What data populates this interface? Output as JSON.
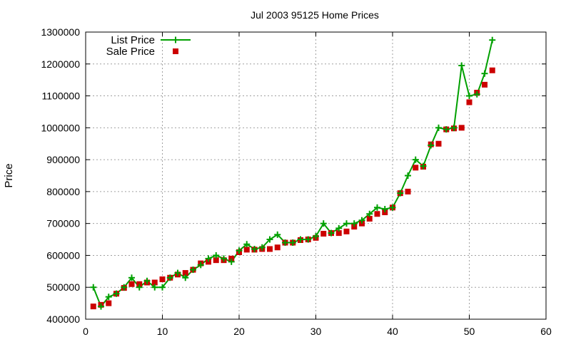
{
  "chart_data": {
    "type": "line",
    "title": "Jul 2003 95125 Home Prices",
    "xlabel": "",
    "ylabel": "Price",
    "xlim": [
      0,
      60
    ],
    "ylim": [
      400000,
      1300000
    ],
    "x_ticks": [
      0,
      10,
      20,
      30,
      40,
      50,
      60
    ],
    "y_ticks": [
      400000,
      500000,
      600000,
      700000,
      800000,
      900000,
      1000000,
      1100000,
      1200000,
      1300000
    ],
    "grid": true,
    "legend_position": "top-left",
    "series": [
      {
        "name": "List Price",
        "style": "line-with-plus-markers",
        "color": "#00a000",
        "x": [
          1,
          2,
          3,
          4,
          5,
          6,
          7,
          8,
          9,
          10,
          11,
          12,
          13,
          14,
          15,
          16,
          17,
          18,
          19,
          20,
          21,
          22,
          23,
          24,
          25,
          26,
          27,
          28,
          29,
          30,
          31,
          32,
          33,
          34,
          35,
          36,
          37,
          38,
          39,
          40,
          41,
          42,
          43,
          44,
          45,
          46,
          47,
          48,
          49,
          50,
          51,
          52,
          53
        ],
        "values": [
          500000,
          440000,
          470000,
          480000,
          500000,
          530000,
          500000,
          520000,
          500000,
          500000,
          530000,
          545000,
          530000,
          555000,
          570000,
          590000,
          600000,
          590000,
          580000,
          615000,
          635000,
          620000,
          625000,
          650000,
          665000,
          640000,
          640000,
          650000,
          650000,
          660000,
          700000,
          670000,
          685000,
          700000,
          700000,
          710000,
          730000,
          750000,
          745000,
          750000,
          795000,
          850000,
          900000,
          880000,
          945000,
          1000000,
          995000,
          1000000,
          1195000,
          1100000,
          1105000,
          1170000,
          1275000
        ]
      },
      {
        "name": "Sale Price",
        "style": "square-markers",
        "color": "#cc0000",
        "x": [
          1,
          2,
          3,
          4,
          5,
          6,
          7,
          8,
          9,
          10,
          11,
          12,
          13,
          14,
          15,
          16,
          17,
          18,
          19,
          20,
          21,
          22,
          23,
          24,
          25,
          26,
          27,
          28,
          29,
          30,
          31,
          32,
          33,
          34,
          35,
          36,
          37,
          38,
          39,
          40,
          41,
          42,
          43,
          44,
          45,
          46,
          47,
          48,
          49,
          50,
          51,
          52,
          53
        ],
        "values": [
          440000,
          445000,
          450000,
          480000,
          498000,
          510000,
          510000,
          515000,
          515000,
          525000,
          530000,
          540000,
          545000,
          555000,
          575000,
          580000,
          585000,
          585000,
          590000,
          610000,
          618000,
          618000,
          620000,
          620000,
          625000,
          640000,
          640000,
          648000,
          650000,
          655000,
          668000,
          670000,
          670000,
          675000,
          690000,
          700000,
          715000,
          730000,
          735000,
          750000,
          795000,
          800000,
          875000,
          878000,
          948000,
          950000,
          995000,
          998000,
          1000000,
          1080000,
          1110000,
          1135000,
          1180000
        ]
      }
    ]
  }
}
